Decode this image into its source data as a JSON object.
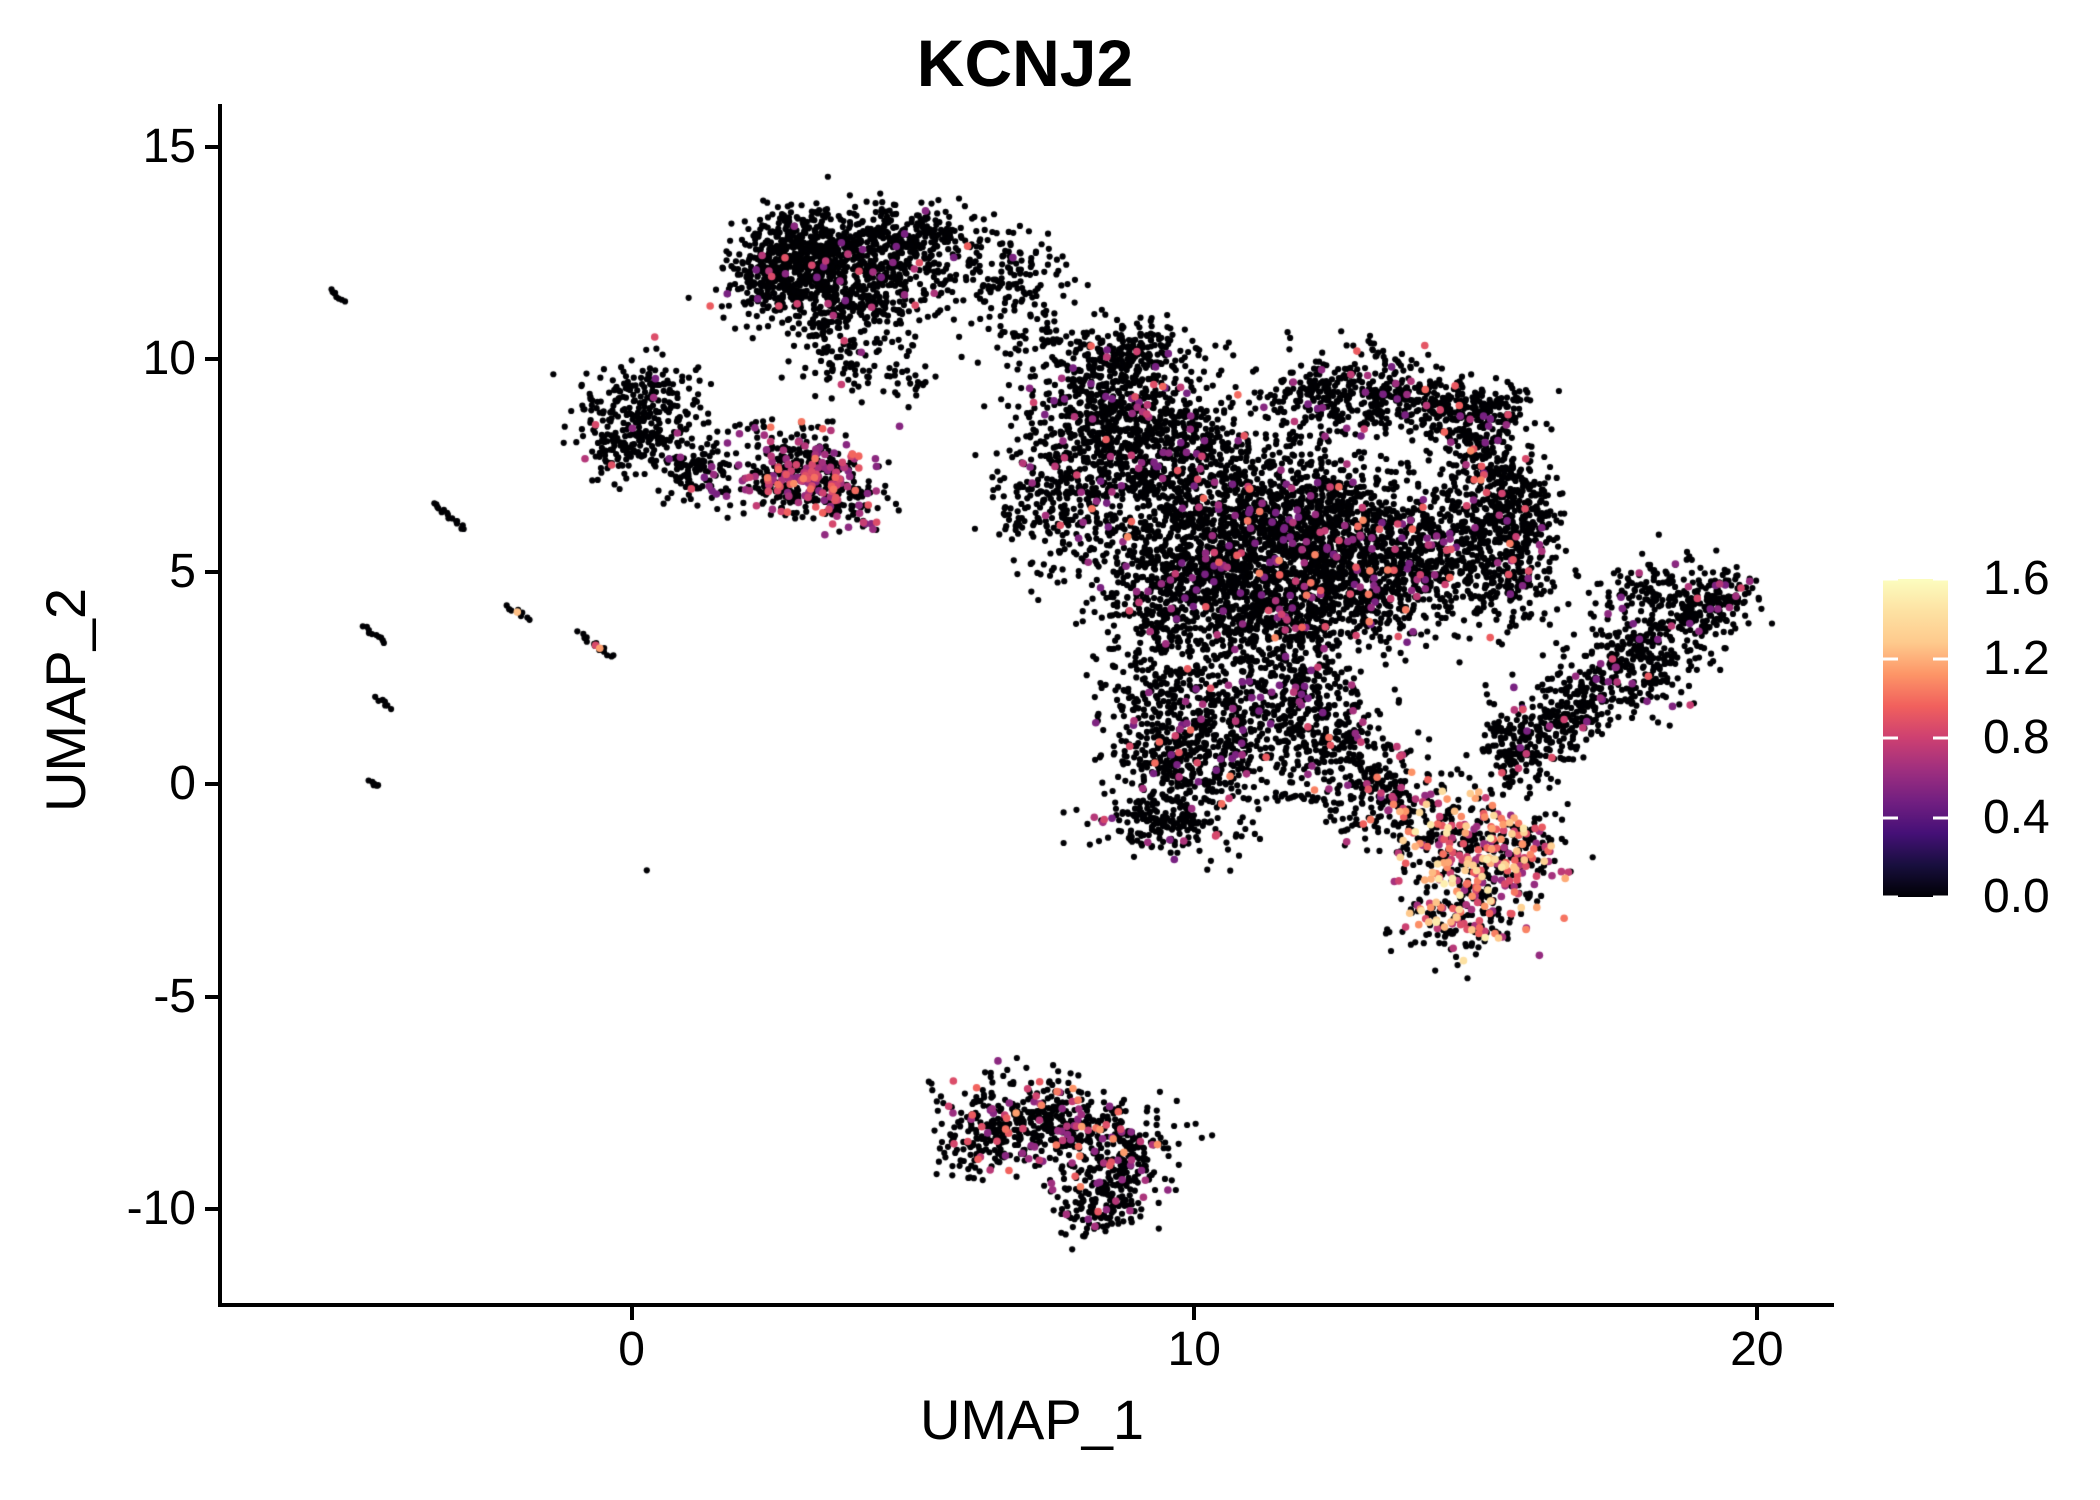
{
  "page": {
    "title": "KCNJ2 feature plot"
  },
  "chart_data": {
    "type": "scatter",
    "title": "KCNJ2",
    "xlabel": "UMAP_1",
    "ylabel": "UMAP_2",
    "xlim": [
      -7.28,
      21.3
    ],
    "ylim": [
      -12.21,
      16.0
    ],
    "xticks": [
      0,
      10,
      20
    ],
    "xtick_labels": [
      "0",
      "10",
      "20"
    ],
    "yticks": [
      15,
      10,
      5,
      0,
      -5,
      -10
    ],
    "ytick_labels": [
      "15",
      "10",
      "5",
      "0",
      "-5",
      "-10"
    ],
    "grid": false,
    "background": "#ffffff",
    "zero_expression_color": "#000004",
    "colorbar": {
      "vmin": 0.0,
      "vmax": 1.6,
      "ticks": [
        1.6,
        1.2,
        0.8,
        0.4,
        0.0
      ],
      "tick_labels": [
        "1.6",
        "1.2",
        "0.8",
        "0.4",
        "0.0"
      ],
      "palette": "magma",
      "stops": [
        "#000004",
        "#180f3e",
        "#451077",
        "#721f81",
        "#9f2f7f",
        "#cd4071",
        "#f1605d",
        "#fd9567",
        "#feca8d",
        "#fde2a3",
        "#fcfdbf"
      ]
    },
    "seed": 42,
    "point_radius_zero": 3.1,
    "point_radius_expressing": 3.8,
    "clusters": [
      {
        "name": "top-cluster",
        "components": [
          [
            3.0,
            12.6,
            0.55,
            0.45,
            -15,
            360,
            0.03,
            0.5,
            0.95,
            2.0
          ],
          [
            4.2,
            12.45,
            0.7,
            0.5,
            10,
            400,
            0.03,
            0.5,
            0.95,
            2.0
          ],
          [
            2.55,
            11.7,
            0.5,
            0.4,
            0,
            220,
            0.03,
            0.5,
            0.95,
            2.0
          ],
          [
            4.0,
            11.4,
            0.8,
            0.45,
            5,
            250,
            0.04,
            0.5,
            0.95,
            2.0
          ],
          [
            5.1,
            13.0,
            0.5,
            0.3,
            0,
            120,
            0.02,
            0.5,
            0.9,
            2.0
          ],
          [
            3.6,
            10.3,
            0.5,
            0.5,
            0,
            80,
            0.02,
            0.5,
            0.9,
            2.0
          ],
          [
            4.6,
            9.7,
            0.45,
            0.4,
            0,
            55,
            0.02,
            0.5,
            0.9,
            2.0
          ],
          [
            6.2,
            12.2,
            0.6,
            0.55,
            0,
            110,
            0.03,
            0.5,
            0.9,
            2.0
          ],
          [
            6.9,
            11.4,
            0.5,
            0.6,
            0,
            65,
            0.03,
            0.5,
            0.9,
            2.0
          ],
          [
            7.2,
            10.5,
            0.4,
            0.3,
            0,
            25,
            0.02,
            0.5,
            0.9,
            2.0
          ]
        ]
      },
      {
        "name": "left-blob",
        "components": [
          [
            0.1,
            9.0,
            0.55,
            0.5,
            0,
            200,
            0.025,
            0.5,
            0.9,
            2.0
          ],
          [
            0.5,
            8.0,
            0.55,
            0.4,
            -20,
            130,
            0.03,
            0.5,
            0.9,
            2.0
          ],
          [
            1.3,
            7.1,
            0.45,
            0.3,
            -30,
            70,
            0.04,
            0.5,
            0.9,
            2.0
          ],
          [
            -0.3,
            7.8,
            0.3,
            0.35,
            0,
            60,
            0.03,
            0.5,
            0.9,
            2.0
          ]
        ]
      },
      {
        "name": "purple-cluster",
        "components": [
          [
            3.0,
            7.6,
            0.6,
            0.45,
            -10,
            200,
            0.34,
            0.55,
            1.05,
            1.8
          ],
          [
            3.3,
            6.95,
            0.55,
            0.4,
            -15,
            160,
            0.4,
            0.55,
            1.1,
            1.8
          ],
          [
            2.6,
            7.05,
            0.35,
            0.3,
            0,
            80,
            0.3,
            0.55,
            1.0,
            1.8
          ],
          [
            3.9,
            6.5,
            0.3,
            0.3,
            0,
            50,
            0.26,
            0.55,
            1.0,
            1.8
          ]
        ]
      },
      {
        "name": "central-mass",
        "components": [
          [
            8.6,
            9.0,
            0.8,
            0.75,
            0,
            520,
            0.04,
            0.5,
            1.0,
            2.2
          ],
          [
            8.9,
            10.2,
            0.7,
            0.35,
            0,
            150,
            0.04,
            0.5,
            1.0,
            2.2
          ],
          [
            9.6,
            7.6,
            0.9,
            0.8,
            0,
            600,
            0.05,
            0.5,
            1.1,
            2.2
          ],
          [
            7.6,
            6.8,
            0.6,
            0.8,
            0,
            300,
            0.04,
            0.5,
            1.0,
            2.2
          ],
          [
            12.4,
            9.2,
            0.7,
            0.5,
            15,
            260,
            0.04,
            0.5,
            1.1,
            2.2
          ],
          [
            13.7,
            9.0,
            0.55,
            0.4,
            0,
            180,
            0.05,
            0.5,
            1.1,
            2.2
          ],
          [
            14.7,
            8.6,
            0.4,
            0.45,
            0,
            140,
            0.05,
            0.5,
            1.0,
            2.2
          ],
          [
            15.4,
            8.6,
            0.35,
            0.5,
            0,
            90,
            0.04,
            0.5,
            1.0,
            2.2
          ],
          [
            15.2,
            7.5,
            0.4,
            0.6,
            0,
            170,
            0.06,
            0.5,
            1.1,
            2.2
          ],
          [
            15.3,
            6.3,
            0.45,
            0.55,
            0,
            170,
            0.06,
            0.5,
            1.1,
            2.2
          ],
          [
            10.8,
            5.6,
            1.1,
            0.9,
            0,
            900,
            0.05,
            0.5,
            1.1,
            2.2
          ],
          [
            12.3,
            6.3,
            0.9,
            0.8,
            0,
            650,
            0.06,
            0.5,
            1.1,
            2.2
          ],
          [
            12.9,
            4.7,
            0.9,
            0.75,
            0,
            550,
            0.06,
            0.5,
            1.1,
            2.2
          ],
          [
            11.3,
            3.9,
            0.8,
            0.7,
            0,
            450,
            0.05,
            0.5,
            1.1,
            2.2
          ],
          [
            9.6,
            4.6,
            0.7,
            0.8,
            0,
            380,
            0.04,
            0.5,
            1.0,
            2.2
          ],
          [
            14.2,
            5.5,
            0.6,
            0.7,
            0,
            300,
            0.07,
            0.5,
            1.1,
            2.2
          ],
          [
            15.6,
            4.9,
            0.45,
            0.7,
            0,
            220,
            0.06,
            0.5,
            1.0,
            2.2
          ],
          [
            16.0,
            6.4,
            0.3,
            0.5,
            0,
            110,
            0.05,
            0.5,
            1.0,
            2.2
          ],
          [
            9.5,
            1.9,
            0.6,
            0.8,
            0,
            280,
            0.05,
            0.5,
            1.0,
            2.2
          ],
          [
            9.8,
            0.3,
            0.65,
            0.7,
            0,
            300,
            0.06,
            0.5,
            1.1,
            2.2
          ],
          [
            9.4,
            -0.9,
            0.7,
            0.4,
            -10,
            140,
            0.07,
            0.5,
            1.1,
            2.0
          ],
          [
            10.9,
            1.5,
            0.6,
            0.7,
            0,
            220,
            0.05,
            0.5,
            1.0,
            2.2
          ],
          [
            12.0,
            2.2,
            0.55,
            0.6,
            0,
            180,
            0.05,
            0.5,
            1.0,
            2.2
          ],
          [
            12.6,
            0.9,
            0.6,
            0.6,
            0,
            200,
            0.06,
            0.5,
            1.1,
            2.0
          ],
          [
            13.4,
            -0.2,
            0.5,
            0.5,
            0,
            150,
            0.12,
            0.55,
            1.2,
            1.8
          ]
        ]
      },
      {
        "name": "high-expression-blob",
        "components": [
          [
            14.6,
            -1.2,
            0.7,
            0.6,
            -20,
            260,
            0.42,
            0.6,
            1.5,
            1.3
          ],
          [
            15.2,
            -2.3,
            0.55,
            0.6,
            0,
            200,
            0.44,
            0.6,
            1.55,
            1.3
          ],
          [
            14.6,
            -3.2,
            0.45,
            0.4,
            0,
            110,
            0.36,
            0.6,
            1.45,
            1.3
          ],
          [
            15.9,
            -1.4,
            0.3,
            0.45,
            0,
            80,
            0.3,
            0.6,
            1.35,
            1.3
          ]
        ]
      },
      {
        "name": "right-wing",
        "components": [
          [
            15.8,
            0.7,
            0.5,
            0.35,
            35,
            90,
            0.05,
            0.5,
            0.95,
            2.0
          ],
          [
            16.4,
            1.5,
            0.8,
            0.45,
            35,
            220,
            0.06,
            0.5,
            0.95,
            2.0
          ],
          [
            17.6,
            2.6,
            0.8,
            0.5,
            35,
            260,
            0.07,
            0.5,
            0.95,
            2.0
          ],
          [
            18.6,
            3.8,
            0.7,
            0.45,
            35,
            220,
            0.06,
            0.5,
            0.95,
            2.0
          ],
          [
            19.3,
            4.4,
            0.35,
            0.3,
            35,
            80,
            0.05,
            0.5,
            0.95,
            2.0
          ],
          [
            18.0,
            4.6,
            0.5,
            0.35,
            20,
            90,
            0.05,
            0.5,
            0.9,
            2.0
          ]
        ]
      },
      {
        "name": "bottom-cluster",
        "components": [
          [
            6.8,
            -7.8,
            0.7,
            0.5,
            -10,
            230,
            0.12,
            0.55,
            1.05,
            1.8
          ],
          [
            8.0,
            -8.0,
            0.7,
            0.45,
            -15,
            230,
            0.12,
            0.55,
            1.15,
            1.8
          ],
          [
            8.6,
            -9.0,
            0.55,
            0.5,
            0,
            180,
            0.13,
            0.55,
            1.15,
            1.8
          ],
          [
            8.3,
            -10.0,
            0.4,
            0.35,
            0,
            110,
            0.1,
            0.55,
            1.05,
            1.8
          ],
          [
            6.3,
            -8.6,
            0.4,
            0.35,
            0,
            80,
            0.1,
            0.55,
            1.0,
            1.8
          ]
        ]
      }
    ],
    "streaks": [
      {
        "from": [
          -5.35,
          11.62
        ],
        "to": [
          -5.12,
          11.38
        ],
        "n": 8,
        "jitter": 0.04,
        "colored": []
      },
      {
        "from": [
          -3.55,
          6.6
        ],
        "to": [
          -2.95,
          6.02
        ],
        "n": 16,
        "jitter": 0.05,
        "colored": []
      },
      {
        "from": [
          -2.18,
          4.18
        ],
        "to": [
          -1.85,
          3.88
        ],
        "n": 9,
        "jitter": 0.04,
        "colored": [
          {
            "t": 0.45,
            "v": 1.25
          }
        ]
      },
      {
        "from": [
          -4.78,
          3.72
        ],
        "to": [
          -4.38,
          3.32
        ],
        "n": 10,
        "jitter": 0.04,
        "colored": []
      },
      {
        "from": [
          -0.95,
          3.55
        ],
        "to": [
          -0.33,
          2.98
        ],
        "n": 14,
        "jitter": 0.05,
        "colored": [
          {
            "t": 0.5,
            "v": 0.85
          },
          {
            "t": 0.62,
            "v": 1.15
          }
        ]
      },
      {
        "from": [
          -4.52,
          2.02
        ],
        "to": [
          -4.28,
          1.78
        ],
        "n": 7,
        "jitter": 0.04,
        "colored": []
      },
      {
        "from": [
          -4.68,
          0.08
        ],
        "to": [
          -4.5,
          -0.06
        ],
        "n": 6,
        "jitter": 0.04,
        "colored": []
      },
      {
        "from": [
          8.9,
          -0.75
        ],
        "to": [
          10.2,
          -0.95
        ],
        "n": 26,
        "jitter": 0.07,
        "colored": []
      },
      {
        "from": [
          11.4,
          -0.25
        ],
        "to": [
          12.3,
          -0.4
        ],
        "n": 18,
        "jitter": 0.06,
        "colored": []
      }
    ],
    "singles": [
      [
        0.27,
        -2.03
      ]
    ]
  }
}
